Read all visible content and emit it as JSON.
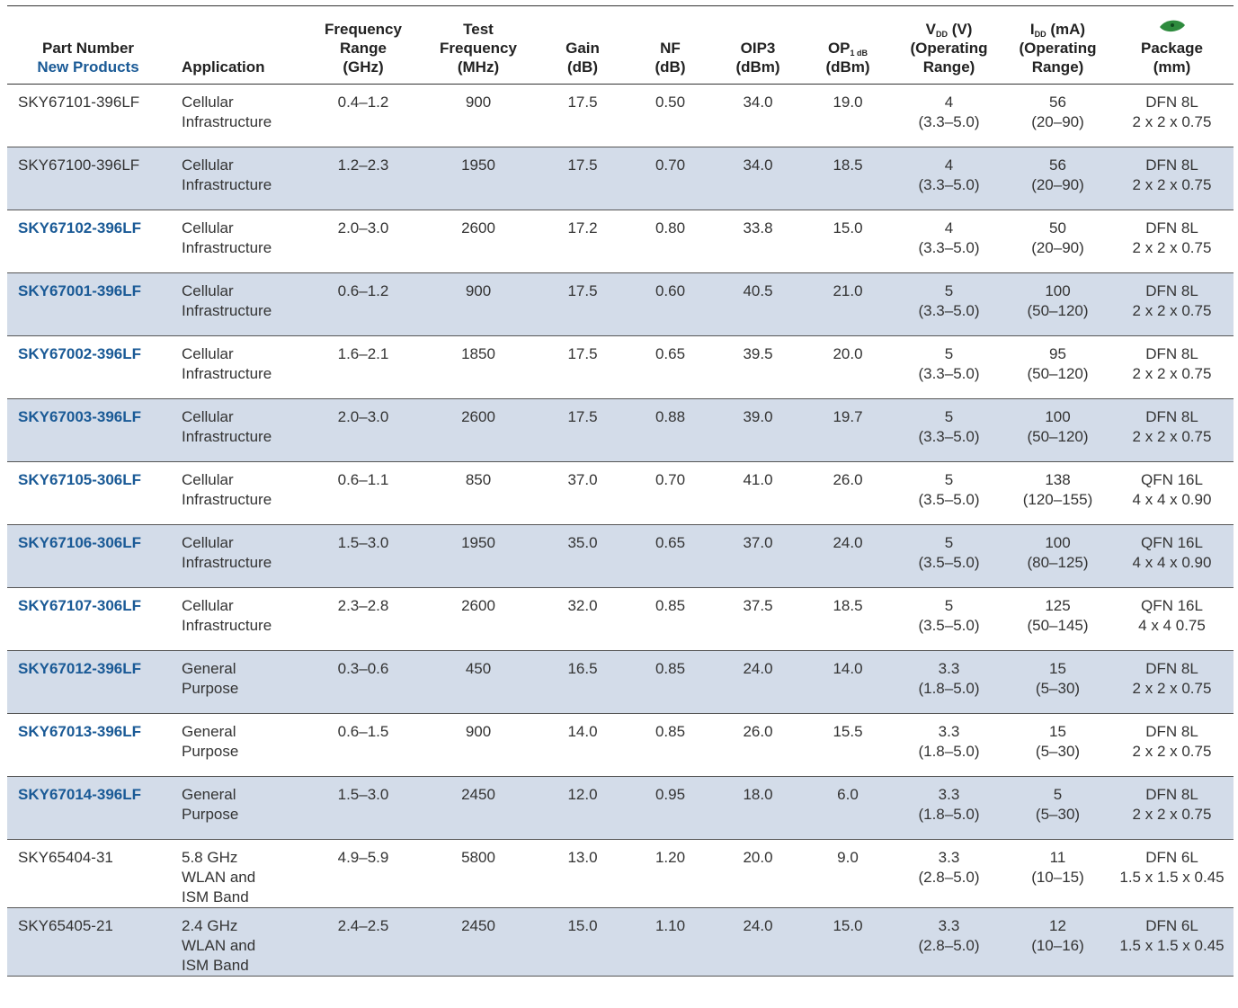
{
  "headers": {
    "part_number": "Part Number",
    "new_products": "New Products",
    "application": "Application",
    "freq_range": [
      "Frequency",
      "Range",
      "(GHz)"
    ],
    "test_freq": [
      "Test",
      "Frequency",
      "(MHz)"
    ],
    "gain": [
      "Gain",
      "(dB)"
    ],
    "nf": [
      "NF",
      "(dB)"
    ],
    "oip3": [
      "OIP3",
      "(dBm)"
    ],
    "op1db": {
      "main": "OP",
      "sub": "1 dB",
      "unit": "(dBm)"
    },
    "vdd": {
      "main": "V",
      "sub": "DD",
      "unit": " (V)",
      "l2": "(Operating",
      "l3": "Range)"
    },
    "idd": {
      "main": "I",
      "sub": "DD",
      "unit": " (mA)",
      "l2": "(Operating",
      "l3": "Range)"
    },
    "package": [
      "Package",
      "(mm)"
    ],
    "package_icon_color": "#2e8b3e"
  },
  "rows": [
    {
      "part": "SKY67101-396LF",
      "new": false,
      "app": [
        "Cellular",
        "Infrastructure"
      ],
      "freq": "0.4–1.2",
      "test": "900",
      "gain": "17.5",
      "nf": "0.50",
      "oip3": "34.0",
      "op1": "19.0",
      "vdd": [
        "4",
        "(3.3–5.0)"
      ],
      "idd": [
        "56",
        "(20–90)"
      ],
      "pkg": [
        "DFN 8L",
        "2 x 2 x 0.75"
      ]
    },
    {
      "part": "SKY67100-396LF",
      "new": false,
      "app": [
        "Cellular",
        "Infrastructure"
      ],
      "freq": "1.2–2.3",
      "test": "1950",
      "gain": "17.5",
      "nf": "0.70",
      "oip3": "34.0",
      "op1": "18.5",
      "vdd": [
        "4",
        "(3.3–5.0)"
      ],
      "idd": [
        "56",
        "(20–90)"
      ],
      "pkg": [
        "DFN 8L",
        "2 x 2 x 0.75"
      ]
    },
    {
      "part": "SKY67102-396LF",
      "new": true,
      "app": [
        "Cellular",
        "Infrastructure"
      ],
      "freq": "2.0–3.0",
      "test": "2600",
      "gain": "17.2",
      "nf": "0.80",
      "oip3": "33.8",
      "op1": "15.0",
      "vdd": [
        "4",
        "(3.3–5.0)"
      ],
      "idd": [
        "50",
        "(20–90)"
      ],
      "pkg": [
        "DFN 8L",
        "2 x 2 x 0.75"
      ]
    },
    {
      "part": "SKY67001-396LF",
      "new": true,
      "app": [
        "Cellular",
        "Infrastructure"
      ],
      "freq": "0.6–1.2",
      "test": "900",
      "gain": "17.5",
      "nf": "0.60",
      "oip3": "40.5",
      "op1": "21.0",
      "vdd": [
        "5",
        "(3.3–5.0)"
      ],
      "idd": [
        "100",
        "(50–120)"
      ],
      "pkg": [
        "DFN 8L",
        "2 x 2 x 0.75"
      ]
    },
    {
      "part": "SKY67002-396LF",
      "new": true,
      "app": [
        "Cellular",
        "Infrastructure"
      ],
      "freq": "1.6–2.1",
      "test": "1850",
      "gain": "17.5",
      "nf": "0.65",
      "oip3": "39.5",
      "op1": "20.0",
      "vdd": [
        "5",
        "(3.3–5.0)"
      ],
      "idd": [
        "95",
        "(50–120)"
      ],
      "pkg": [
        "DFN 8L",
        "2 x 2 x 0.75"
      ]
    },
    {
      "part": "SKY67003-396LF",
      "new": true,
      "app": [
        "Cellular",
        "Infrastructure"
      ],
      "freq": "2.0–3.0",
      "test": "2600",
      "gain": "17.5",
      "nf": "0.88",
      "oip3": "39.0",
      "op1": "19.7",
      "vdd": [
        "5",
        "(3.3–5.0)"
      ],
      "idd": [
        "100",
        "(50–120)"
      ],
      "pkg": [
        "DFN 8L",
        "2 x 2 x 0.75"
      ]
    },
    {
      "part": "SKY67105-306LF",
      "new": true,
      "app": [
        "Cellular",
        "Infrastructure"
      ],
      "freq": "0.6–1.1",
      "test": "850",
      "gain": "37.0",
      "nf": "0.70",
      "oip3": "41.0",
      "op1": "26.0",
      "vdd": [
        "5",
        "(3.5–5.0)"
      ],
      "idd": [
        "138",
        "(120–155)"
      ],
      "pkg": [
        "QFN 16L",
        "4 x 4 x 0.90"
      ]
    },
    {
      "part": "SKY67106-306LF",
      "new": true,
      "app": [
        "Cellular",
        "Infrastructure"
      ],
      "freq": "1.5–3.0",
      "test": "1950",
      "gain": "35.0",
      "nf": "0.65",
      "oip3": "37.0",
      "op1": "24.0",
      "vdd": [
        "5",
        "(3.5–5.0)"
      ],
      "idd": [
        "100",
        "(80–125)"
      ],
      "pkg": [
        "QFN 16L",
        "4 x 4 x 0.90"
      ]
    },
    {
      "part": "SKY67107-306LF",
      "new": true,
      "app": [
        "Cellular",
        "Infrastructure"
      ],
      "freq": "2.3–2.8",
      "test": "2600",
      "gain": "32.0",
      "nf": "0.85",
      "oip3": "37.5",
      "op1": "18.5",
      "vdd": [
        "5",
        "(3.5–5.0)"
      ],
      "idd": [
        "125",
        "(50–145)"
      ],
      "pkg": [
        "QFN 16L",
        "4 x 4 0.75"
      ]
    },
    {
      "part": "SKY67012-396LF",
      "new": true,
      "app": [
        "General",
        "Purpose"
      ],
      "freq": "0.3–0.6",
      "test": "450",
      "gain": "16.5",
      "nf": "0.85",
      "oip3": "24.0",
      "op1": "14.0",
      "vdd": [
        "3.3",
        "(1.8–5.0)"
      ],
      "idd": [
        "15",
        "(5–30)"
      ],
      "pkg": [
        "DFN 8L",
        "2 x 2 x 0.75"
      ]
    },
    {
      "part": "SKY67013-396LF",
      "new": true,
      "app": [
        "General",
        "Purpose"
      ],
      "freq": "0.6–1.5",
      "test": "900",
      "gain": "14.0",
      "nf": "0.85",
      "oip3": "26.0",
      "op1": "15.5",
      "vdd": [
        "3.3",
        "(1.8–5.0)"
      ],
      "idd": [
        "15",
        "(5–30)"
      ],
      "pkg": [
        "DFN 8L",
        "2 x 2 x 0.75"
      ]
    },
    {
      "part": "SKY67014-396LF",
      "new": true,
      "app": [
        "General",
        "Purpose"
      ],
      "freq": "1.5–3.0",
      "test": "2450",
      "gain": "12.0",
      "nf": "0.95",
      "oip3": "18.0",
      "op1": "6.0",
      "vdd": [
        "3.3",
        "(1.8–5.0)"
      ],
      "idd": [
        "5",
        "(5–30)"
      ],
      "pkg": [
        "DFN 8L",
        "2 x 2 x 0.75"
      ]
    },
    {
      "part": "SKY65404-31",
      "new": false,
      "app": [
        "5.8 GHz",
        "WLAN and",
        "ISM Band"
      ],
      "freq": "4.9–5.9",
      "test": "5800",
      "gain": "13.0",
      "nf": "1.20",
      "oip3": "20.0",
      "op1": "9.0",
      "vdd": [
        "3.3",
        "(2.8–5.0)"
      ],
      "idd": [
        "11",
        "(10–15)"
      ],
      "pkg": [
        "DFN 6L",
        "1.5 x 1.5 x 0.45"
      ]
    },
    {
      "part": "SKY65405-21",
      "new": false,
      "app": [
        "2.4 GHz",
        "WLAN and",
        "ISM Band"
      ],
      "freq": "2.4–2.5",
      "test": "2450",
      "gain": "15.0",
      "nf": "1.10",
      "oip3": "24.0",
      "op1": "15.0",
      "vdd": [
        "3.3",
        "(2.8–5.0)"
      ],
      "idd": [
        "12",
        "(10–16)"
      ],
      "pkg": [
        "DFN 6L",
        "1.5 x 1.5 x 0.45"
      ]
    }
  ]
}
